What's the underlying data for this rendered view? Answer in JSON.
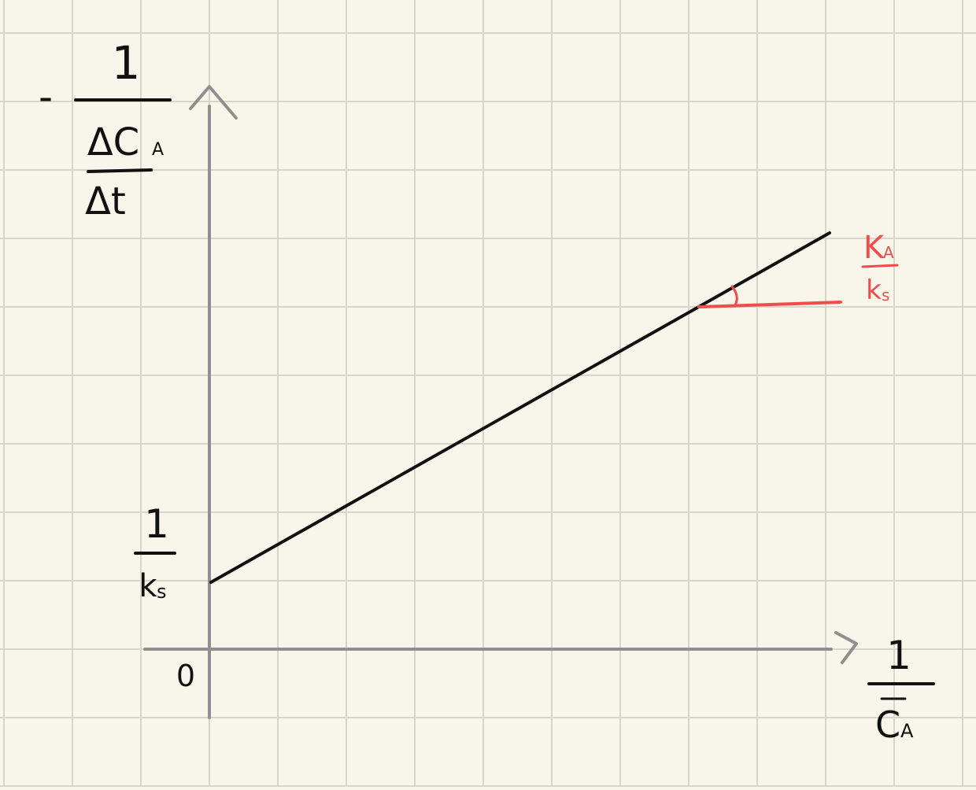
{
  "colors": {
    "background": "#f8f6ea",
    "grid": "#d7d6cc",
    "axis": "#8f8f8f",
    "line": "#111111",
    "slope": "#ef4c4c"
  },
  "y_axis_label": {
    "sign": "-",
    "numerator": "1",
    "inner_numerator": "ΔC",
    "inner_numerator_sub": "A",
    "inner_denominator": "Δt"
  },
  "x_axis_label": {
    "numerator": "1",
    "denominator": "C",
    "denominator_sub": "A"
  },
  "intercept_label": {
    "numerator": "1",
    "denominator": "k",
    "denominator_sub": "s"
  },
  "slope_label": {
    "numerator": "K",
    "numerator_sub": "A",
    "denominator": "k",
    "denominator_sub": "s"
  },
  "origin_label": "0"
}
